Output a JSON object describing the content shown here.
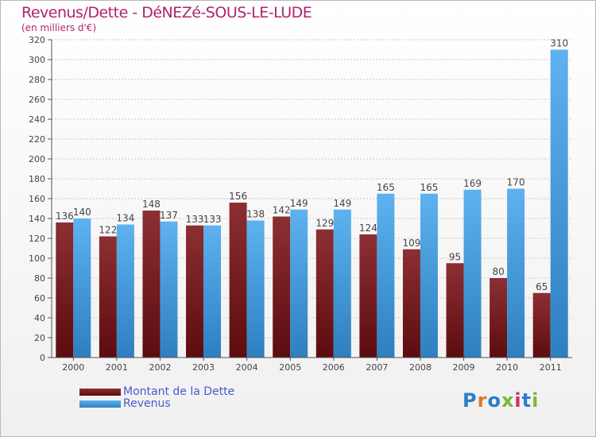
{
  "header": {
    "title": "Revenus/Dette - DéNEZé-SOUS-LE-LUDE",
    "subtitle": "(en milliers d'€)"
  },
  "colors": {
    "dette": "#7a1a1e",
    "revenus": "#4ea1e2",
    "title": "#b0246a",
    "legend_text": "#4a58d0",
    "grid": "#c8c8c8"
  },
  "chart_data": {
    "type": "bar",
    "title": "Revenus/Dette - DéNEZé-SOUS-LE-LUDE",
    "subtitle": "(en milliers d'€)",
    "xlabel": "",
    "ylabel": "",
    "ylim": [
      0,
      320
    ],
    "yticks": [
      0,
      20,
      40,
      60,
      80,
      100,
      120,
      140,
      160,
      180,
      200,
      220,
      240,
      260,
      280,
      300,
      320
    ],
    "grid": true,
    "legend_position": "bottom-left",
    "categories": [
      "2000",
      "2001",
      "2002",
      "2003",
      "2004",
      "2005",
      "2006",
      "2007",
      "2008",
      "2009",
      "2010",
      "2011"
    ],
    "series": [
      {
        "name": "Montant de la Dette",
        "values": [
          136,
          122,
          148,
          133,
          156,
          142,
          129,
          124,
          109,
          95,
          80,
          65
        ]
      },
      {
        "name": "Revenus",
        "values": [
          140,
          134,
          137,
          133,
          138,
          149,
          149,
          165,
          165,
          169,
          170,
          310
        ]
      }
    ]
  },
  "legend": {
    "items": [
      {
        "label": "Montant de la Dette"
      },
      {
        "label": "Revenus"
      }
    ]
  },
  "logo": {
    "text": "Proxiti"
  }
}
